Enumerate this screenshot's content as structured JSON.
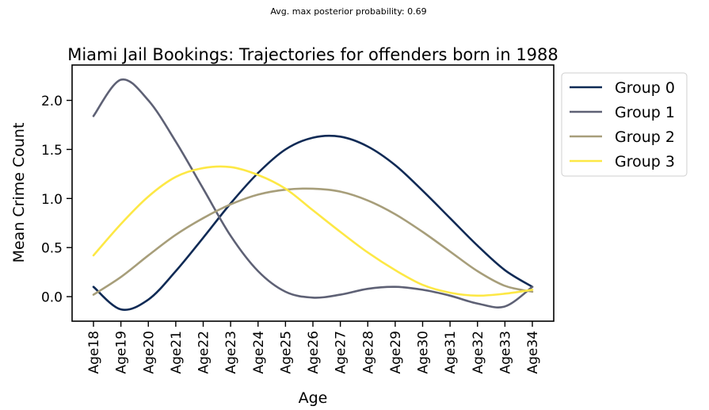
{
  "suptitle": "Avg. max posterior probability: 0.69",
  "chart_data": {
    "type": "line",
    "title": "Miami Jail Bookings: Trajectories for offenders born in 1988",
    "xlabel": "Age",
    "ylabel": "Mean Crime Count",
    "categories": [
      "Age18",
      "Age19",
      "Age20",
      "Age21",
      "Age22",
      "Age23",
      "Age24",
      "Age25",
      "Age26",
      "Age27",
      "Age28",
      "Age29",
      "Age30",
      "Age31",
      "Age32",
      "Age33",
      "Age34"
    ],
    "yticks": [
      "0.0",
      "0.5",
      "1.0",
      "1.5",
      "2.0"
    ],
    "ylim": [
      -0.25,
      2.36
    ],
    "grid": false,
    "legend_position": "right-outside",
    "series": [
      {
        "name": "Group 0",
        "color": "#0f2a55",
        "values": [
          0.1,
          -0.13,
          -0.03,
          0.26,
          0.6,
          0.95,
          1.26,
          1.5,
          1.62,
          1.63,
          1.53,
          1.34,
          1.08,
          0.8,
          0.52,
          0.27,
          0.1
        ]
      },
      {
        "name": "Group 1",
        "color": "#5e6175",
        "values": [
          1.84,
          2.21,
          2.0,
          1.58,
          1.1,
          0.62,
          0.26,
          0.05,
          -0.01,
          0.02,
          0.08,
          0.1,
          0.07,
          0.01,
          -0.07,
          -0.1,
          0.1
        ]
      },
      {
        "name": "Group 2",
        "color": "#a79e7a",
        "values": [
          0.02,
          0.2,
          0.42,
          0.63,
          0.8,
          0.94,
          1.04,
          1.09,
          1.1,
          1.07,
          0.98,
          0.84,
          0.66,
          0.46,
          0.26,
          0.11,
          0.05
        ]
      },
      {
        "name": "Group 3",
        "color": "#fde845",
        "values": [
          0.42,
          0.74,
          1.02,
          1.22,
          1.31,
          1.32,
          1.24,
          1.1,
          0.88,
          0.66,
          0.45,
          0.27,
          0.12,
          0.04,
          0.01,
          0.03,
          0.07
        ]
      }
    ]
  }
}
